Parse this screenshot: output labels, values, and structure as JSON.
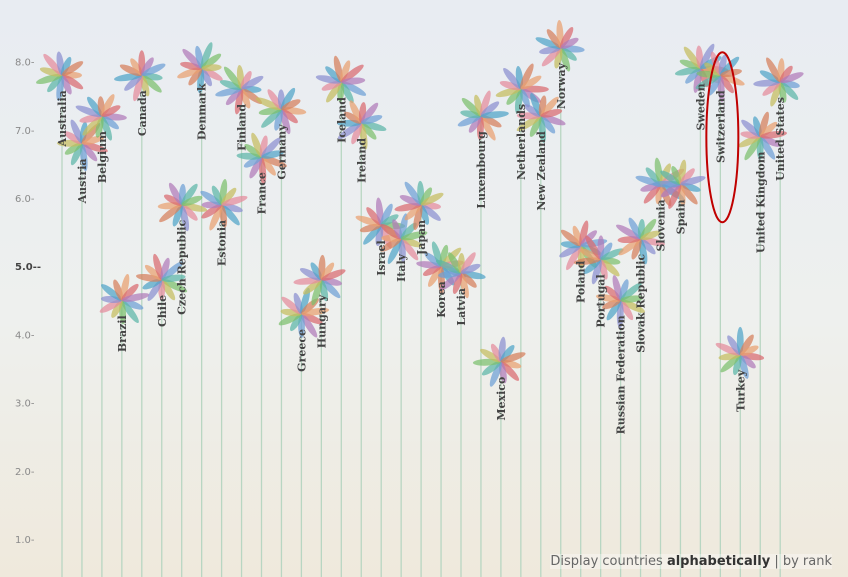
{
  "chart_data": {
    "type": "scatter",
    "ylim": [
      0.6,
      8.6
    ],
    "yticks": [
      "1.0",
      "2.0",
      "3.0",
      "4.0",
      "5.0",
      "6.0",
      "7.0",
      "8.0"
    ],
    "ytick_major": "5.0",
    "grid": false,
    "highlight": "Switzerland",
    "countries": [
      {
        "name": "Australia",
        "value": 7.8
      },
      {
        "name": "Austria",
        "value": 6.8
      },
      {
        "name": "Belgium",
        "value": 7.2
      },
      {
        "name": "Brazil",
        "value": 4.5
      },
      {
        "name": "Canada",
        "value": 7.8
      },
      {
        "name": "Chile",
        "value": 4.8
      },
      {
        "name": "Czech Republic",
        "value": 5.9
      },
      {
        "name": "Denmark",
        "value": 7.9
      },
      {
        "name": "Estonia",
        "value": 5.9
      },
      {
        "name": "Finland",
        "value": 7.6
      },
      {
        "name": "France",
        "value": 6.6
      },
      {
        "name": "Germany",
        "value": 7.3
      },
      {
        "name": "Greece",
        "value": 4.3
      },
      {
        "name": "Hungary",
        "value": 4.8
      },
      {
        "name": "Iceland",
        "value": 7.7
      },
      {
        "name": "Ireland",
        "value": 7.1
      },
      {
        "name": "Israel",
        "value": 5.6
      },
      {
        "name": "Italy",
        "value": 5.4
      },
      {
        "name": "Japan",
        "value": 5.9
      },
      {
        "name": "Korea",
        "value": 5.0
      },
      {
        "name": "Latvia",
        "value": 4.9
      },
      {
        "name": "Luxembourg",
        "value": 7.2
      },
      {
        "name": "Mexico",
        "value": 3.6
      },
      {
        "name": "Netherlands",
        "value": 7.6
      },
      {
        "name": "New Zealand",
        "value": 7.2
      },
      {
        "name": "Norway",
        "value": 8.2
      },
      {
        "name": "Poland",
        "value": 5.3
      },
      {
        "name": "Portugal",
        "value": 5.1
      },
      {
        "name": "Russian Federation",
        "value": 4.5
      },
      {
        "name": "Slovak Republic",
        "value": 5.4
      },
      {
        "name": "Slovenia",
        "value": 6.2
      },
      {
        "name": "Spain",
        "value": 6.2
      },
      {
        "name": "Sweden",
        "value": 7.9
      },
      {
        "name": "Switzerland",
        "value": 7.8
      },
      {
        "name": "Turkey",
        "value": 3.7
      },
      {
        "name": "United Kingdom",
        "value": 6.9
      },
      {
        "name": "United States",
        "value": 7.7
      }
    ]
  },
  "colors": {
    "stem": "#b8d6c2",
    "highlight": "#c00000",
    "petals": [
      "#e9a06f",
      "#d9696f",
      "#b07ab8",
      "#6d9fd6",
      "#5bb5a8",
      "#7cbf6c",
      "#c5bd5e",
      "#e58a9b",
      "#8a8fd0",
      "#4fa3c7",
      "#d67e5a"
    ]
  },
  "footer": {
    "prefix": "Display countries ",
    "option_active": "alphabetically",
    "separator": " | ",
    "option_other": "by rank"
  }
}
